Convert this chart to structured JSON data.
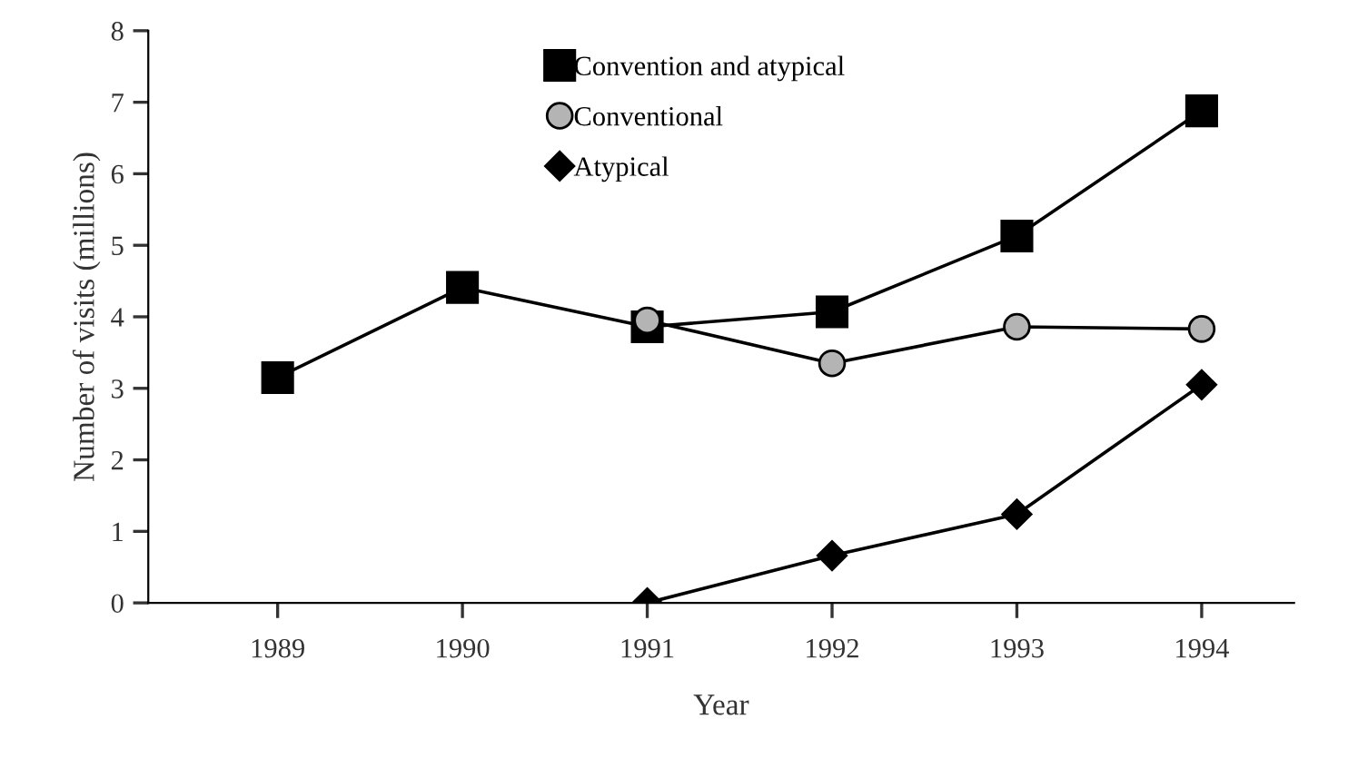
{
  "chart_data": {
    "type": "line",
    "xlabel": "Year",
    "ylabel": "Number of visits (millions)",
    "x": [
      1989,
      1990,
      1991,
      1992,
      1993,
      1994
    ],
    "xlim": [
      1988.3,
      1994.5
    ],
    "xticks": [
      1989,
      1990,
      1991,
      1992,
      1993,
      1994
    ],
    "ylim": [
      0,
      8
    ],
    "yticks": [
      0,
      1,
      2,
      3,
      4,
      5,
      6,
      7,
      8
    ],
    "grid": false,
    "legend": "top",
    "line_style": "solid",
    "series": [
      {
        "name": "Convention and atypical",
        "color": "#000000",
        "marker": "square",
        "values": [
          3.15,
          4.41,
          3.86,
          4.07,
          5.13,
          6.88
        ]
      },
      {
        "name": "Conventional",
        "color": "#b4b4b4",
        "marker": "circle",
        "values": [
          null,
          null,
          3.95,
          3.35,
          3.86,
          3.83
        ]
      },
      {
        "name": "Atypical",
        "color": "#000000",
        "marker": "diamond",
        "values": [
          null,
          null,
          0,
          0.66,
          1.24,
          3.05
        ]
      }
    ]
  }
}
